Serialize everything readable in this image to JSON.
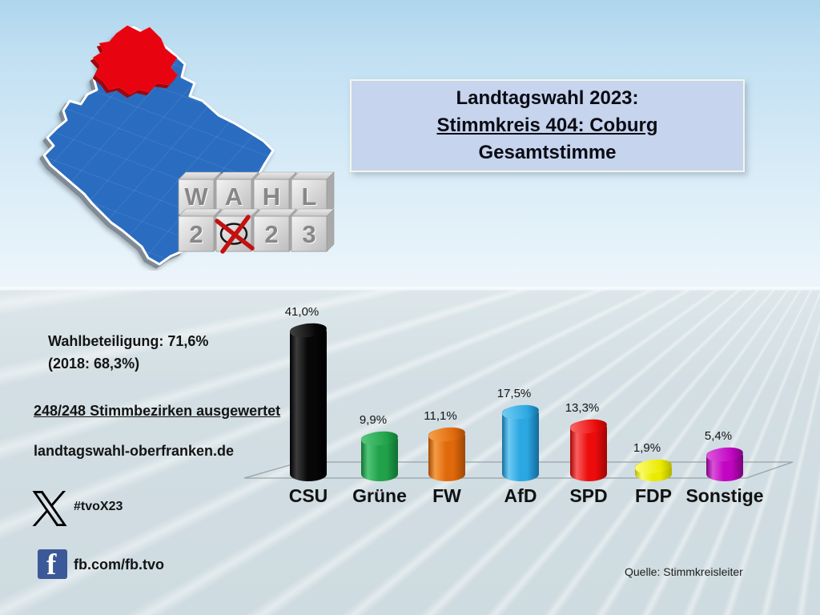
{
  "header": {
    "title_line1": "Landtagswahl 2023:",
    "title_line2": "Stimmkreis 404: Coburg",
    "title_line3": "Gesamtstimme"
  },
  "stats": {
    "turnout_label": "Wahlbeteiligung: 71,6%",
    "turnout_previous": "(2018: 68,3%)",
    "districts_counted": "248/248 Stimmbezirken ausgewertet",
    "website": "landtagswahl-oberfranken.de"
  },
  "social": {
    "x_hashtag": "#tvoX23",
    "facebook_handle": "fb.com/fb.tvo",
    "facebook_letter": "f"
  },
  "footer": {
    "source": "Quelle: Stimmkreisleiter"
  },
  "wahl_blocks": {
    "r1c1": "W",
    "r1c2": "A",
    "r1c3": "H",
    "r1c4": "L",
    "r2c1": "2",
    "r2c3": "2",
    "r2c4": "3",
    "crossed_cube_note": "ballot cross replaces the 0"
  },
  "icons": {
    "x_logo": "x-social-icon",
    "facebook": "facebook-icon",
    "ballot_cross": "ballot-cross-icon",
    "bavaria_map": "bavaria-map-with-oberfranken-highlight"
  },
  "colors": {
    "title_box_bg": "#c6d4ed",
    "bavaria_blue": "#2a6cc0",
    "highlight_red": "#e80310",
    "facebook_blue": "#3b5998",
    "floor_gray": "#d2dee3"
  },
  "chart_data": {
    "type": "bar",
    "style": "3d-cylinder",
    "title": "Landtagswahl 2023 – Stimmkreis 404: Coburg – Gesamtstimme",
    "categories": [
      "CSU",
      "Grüne",
      "FW",
      "AfD",
      "SPD",
      "FDP",
      "Sonstige"
    ],
    "keys": [
      "csu",
      "gruene",
      "fw",
      "afd",
      "spd",
      "fdp",
      "sonstige"
    ],
    "values": [
      41.0,
      9.9,
      11.1,
      17.5,
      13.3,
      1.9,
      5.4
    ],
    "value_labels": [
      "41,0%",
      "9,9%",
      "11,1%",
      "17,5%",
      "13,3%",
      "1,9%",
      "5,4%"
    ],
    "bar_colors": [
      "#070707",
      "#21a24a",
      "#e0690b",
      "#2ba7e2",
      "#ec0c0c",
      "#eaea00",
      "#c105c1"
    ],
    "bar_colors_light": [
      "#3d3d3d",
      "#53c57a",
      "#f59c44",
      "#6ecaf2",
      "#f96060",
      "#fbfb6e",
      "#da52da"
    ],
    "bar_colors_dark": [
      "#000000",
      "#117333",
      "#a34a05",
      "#166f9f",
      "#a80505",
      "#b5b500",
      "#7e037e"
    ],
    "unit": "%",
    "ylim": [
      0,
      45
    ],
    "grid": false,
    "legend": "none"
  }
}
